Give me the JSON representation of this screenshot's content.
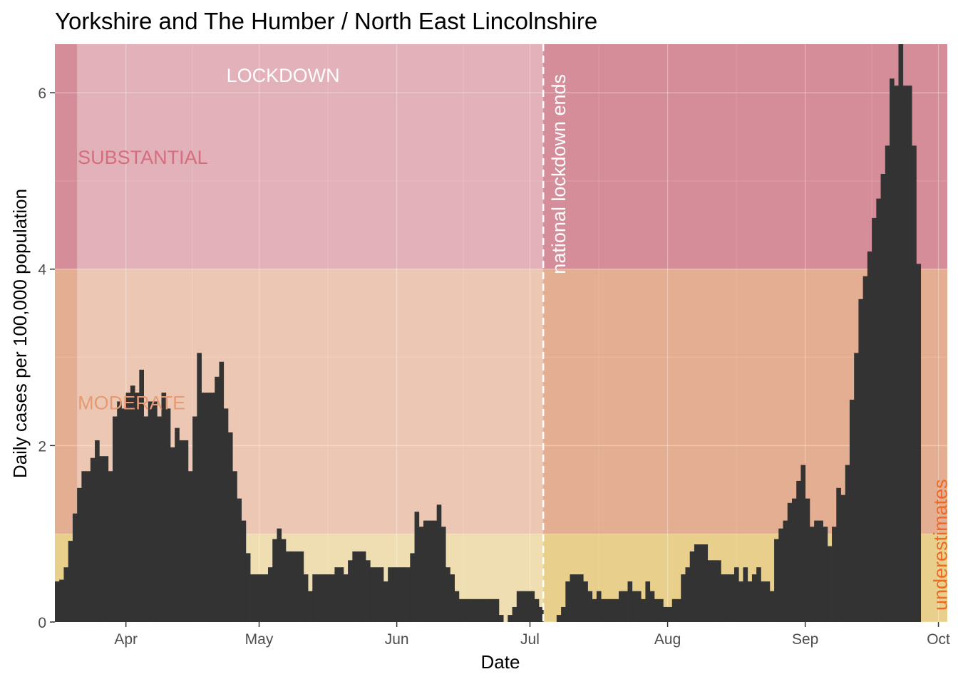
{
  "chart_data": {
    "type": "bar",
    "title": "Yorkshire and The Humber / North East Lincolnshire",
    "xlabel": "Date",
    "ylabel": "Daily cases per 100,000 population",
    "x_range": [
      "2020-03-16",
      "2020-10-03"
    ],
    "ylim": [
      0,
      6.55
    ],
    "y_ticks": [
      0,
      2,
      4,
      6
    ],
    "x_ticks": [
      {
        "date": "2020-04-01",
        "label": "Apr"
      },
      {
        "date": "2020-05-01",
        "label": "May"
      },
      {
        "date": "2020-06-01",
        "label": "Jun"
      },
      {
        "date": "2020-07-01",
        "label": "Jul"
      },
      {
        "date": "2020-08-01",
        "label": "Aug"
      },
      {
        "date": "2020-09-01",
        "label": "Sep"
      },
      {
        "date": "2020-10-01",
        "label": "Oct"
      }
    ],
    "grid": true,
    "start_date": "2020-03-16",
    "values": [
      0.46,
      0.48,
      0.62,
      0.92,
      1.23,
      1.52,
      1.71,
      1.71,
      1.86,
      2.06,
      1.88,
      1.88,
      1.71,
      2.33,
      2.5,
      2.42,
      2.6,
      2.68,
      2.6,
      2.86,
      2.33,
      2.5,
      2.5,
      2.33,
      2.6,
      2.42,
      1.98,
      2.2,
      2.06,
      2.06,
      1.71,
      2.33,
      3.05,
      2.6,
      2.6,
      2.6,
      2.78,
      2.95,
      2.42,
      2.15,
      1.71,
      1.4,
      1.15,
      0.78,
      0.54,
      0.54,
      0.54,
      0.54,
      0.62,
      0.94,
      1.06,
      0.94,
      0.8,
      0.8,
      0.8,
      0.8,
      0.54,
      0.35,
      0.54,
      0.54,
      0.54,
      0.54,
      0.54,
      0.62,
      0.62,
      0.54,
      0.7,
      0.8,
      0.8,
      0.8,
      0.7,
      0.62,
      0.62,
      0.62,
      0.46,
      0.62,
      0.62,
      0.62,
      0.62,
      0.62,
      0.78,
      1.25,
      1.08,
      1.15,
      1.15,
      1.15,
      1.33,
      1.08,
      0.62,
      0.54,
      0.35,
      0.26,
      0.26,
      0.26,
      0.26,
      0.26,
      0.26,
      0.26,
      0.26,
      0.26,
      0.08,
      0,
      0.08,
      0.17,
      0.35,
      0.35,
      0.35,
      0.35,
      0.26,
      0.17,
      0,
      0,
      0,
      0.08,
      0.17,
      0.46,
      0.54,
      0.54,
      0.54,
      0.46,
      0.35,
      0.26,
      0.35,
      0.26,
      0.26,
      0.26,
      0.26,
      0.35,
      0.35,
      0.46,
      0.35,
      0.35,
      0.26,
      0.46,
      0.35,
      0.26,
      0.26,
      0.17,
      0.17,
      0.26,
      0.26,
      0.54,
      0.62,
      0.8,
      0.88,
      0.88,
      0.88,
      0.7,
      0.7,
      0.7,
      0.54,
      0.54,
      0.54,
      0.62,
      0.46,
      0.62,
      0.46,
      0.54,
      0.62,
      0.46,
      0.46,
      0.35,
      0.94,
      1.06,
      1.15,
      1.35,
      1.4,
      1.6,
      1.78,
      1.4,
      1.08,
      1.15,
      1.15,
      1.08,
      0.86,
      1.08,
      1.52,
      1.44,
      1.78,
      2.52,
      3.05,
      3.66,
      3.92,
      4.2,
      4.58,
      4.8,
      5.08,
      5.4,
      6.16,
      6.08,
      6.55,
      6.08,
      6.08,
      5.4,
      4.06
    ],
    "bands": [
      {
        "label": "SUBSTANTIAL",
        "from": 4,
        "to": 6.55,
        "color": "#d58d99"
      },
      {
        "label": "MODERATE",
        "from": 1,
        "to": 4,
        "color": "#e3ae91"
      },
      {
        "label": "",
        "from": 0,
        "to": 1,
        "color": "#e8cf8c"
      }
    ],
    "band_label_color": {
      "SUBSTANTIAL": "#d46e7e",
      "MODERATE": "#e69a72"
    },
    "lockdown_period": {
      "label": "LOCKDOWN",
      "from": "2020-03-21",
      "to": "2020-07-04"
    },
    "annotations": [
      {
        "text": "national lockdown ends",
        "date": "2020-07-04",
        "color": "#ffffff"
      },
      {
        "text": "underestimates",
        "date": "2020-09-30",
        "color": "#ee6a22"
      }
    ],
    "bar_color": "#333333",
    "panel_background": "#ebebeb"
  }
}
